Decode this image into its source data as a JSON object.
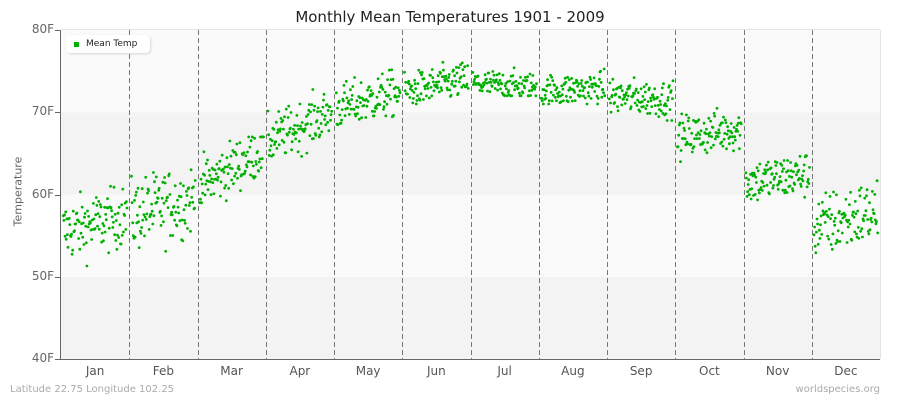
{
  "chart_data": {
    "type": "scatter",
    "title": "Monthly Mean Temperatures 1901 - 2009",
    "xlabel": "",
    "ylabel": "Temperature",
    "ylim": [
      40,
      80
    ],
    "yticks": [
      "40F",
      "50F",
      "60F",
      "70F",
      "80F"
    ],
    "categories": [
      "Jan",
      "Feb",
      "Mar",
      "Apr",
      "May",
      "Jun",
      "Jul",
      "Aug",
      "Sep",
      "Oct",
      "Nov",
      "Dec"
    ],
    "legend": {
      "position": "top-left",
      "entries": [
        "Mean Temp"
      ]
    },
    "grid": {
      "vertical_dashed_month_dividers": true,
      "alternating_bands": true
    },
    "series": [
      {
        "name": "Mean Temp",
        "color": "#00b000",
        "points_per_month": 109,
        "monthly_stats": [
          {
            "month": "Jan",
            "start": 55.5,
            "end": 57.5,
            "mean": 56.5,
            "min": 49.3,
            "max": 61.0,
            "spread": 1.9
          },
          {
            "month": "Feb",
            "start": 57.5,
            "end": 59.5,
            "mean": 58.5,
            "min": 51.4,
            "max": 64.2,
            "spread": 2.2
          },
          {
            "month": "Mar",
            "start": 61.0,
            "end": 65.5,
            "mean": 63.0,
            "min": 59.0,
            "max": 67.0,
            "spread": 1.6
          },
          {
            "month": "Apr",
            "start": 66.5,
            "end": 70.0,
            "mean": 68.5,
            "min": 64.5,
            "max": 73.5,
            "spread": 1.5
          },
          {
            "month": "May",
            "start": 70.5,
            "end": 72.5,
            "mean": 71.5,
            "min": 68.5,
            "max": 76.0,
            "spread": 1.4
          },
          {
            "month": "Jun",
            "start": 72.5,
            "end": 74.0,
            "mean": 73.5,
            "min": 71.0,
            "max": 76.5,
            "spread": 1.1
          },
          {
            "month": "Jul",
            "start": 73.5,
            "end": 73.0,
            "mean": 73.5,
            "min": 72.0,
            "max": 76.0,
            "spread": 0.9
          },
          {
            "month": "Aug",
            "start": 72.5,
            "end": 73.0,
            "mean": 72.5,
            "min": 71.0,
            "max": 75.5,
            "spread": 1.0
          },
          {
            "month": "Sep",
            "start": 72.0,
            "end": 71.5,
            "mean": 71.5,
            "min": 69.0,
            "max": 75.0,
            "spread": 1.1
          },
          {
            "month": "Oct",
            "start": 67.0,
            "end": 68.0,
            "mean": 67.0,
            "min": 64.0,
            "max": 71.5,
            "spread": 1.3
          },
          {
            "month": "Nov",
            "start": 61.5,
            "end": 62.5,
            "mean": 61.5,
            "min": 57.0,
            "max": 65.2,
            "spread": 1.4
          },
          {
            "month": "Dec",
            "start": 56.0,
            "end": 58.0,
            "mean": 57.0,
            "min": 51.0,
            "max": 62.0,
            "spread": 2.0
          }
        ]
      }
    ]
  },
  "legend_label": "Mean Temp",
  "footer": {
    "location": "Latitude 22.75 Longitude 102.25",
    "source": "worldspecies.org"
  },
  "colors": {
    "points": "#00b000",
    "band_light": "#fafafa",
    "band_dark": "#f3f3f3",
    "axis": "#666666",
    "divider": "#777777"
  }
}
